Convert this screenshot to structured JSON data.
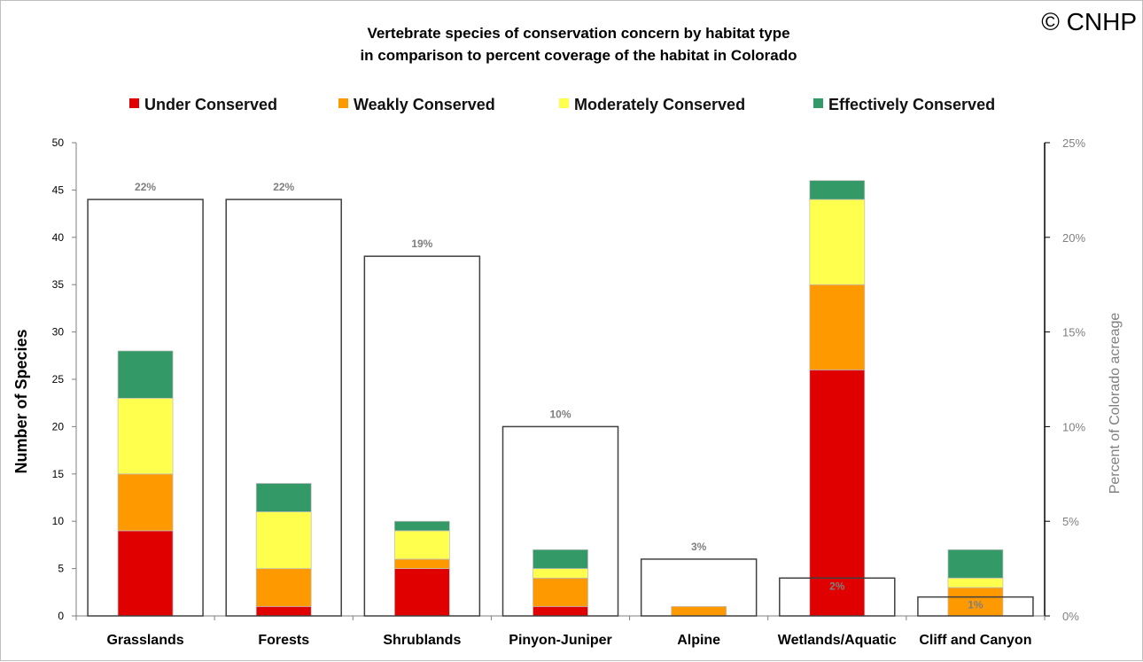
{
  "chart_data": {
    "type": "bar",
    "title": [
      "Vertebrate species of conservation  concern by habitat type",
      "in comparison  to percent coverage of the habitat in Colorado"
    ],
    "copyright": "© CNHP",
    "categories": [
      "Grasslands",
      "Forests",
      "Shrublands",
      "Pinyon-Juniper",
      "Alpine",
      "Wetlands/Aquatic",
      "Cliff and Canyon"
    ],
    "series": [
      {
        "name": "Under Conserved",
        "color": "#e00000",
        "values": [
          9,
          1,
          5,
          1,
          0,
          26,
          0
        ]
      },
      {
        "name": "Weakly Conserved",
        "color": "#ff9900",
        "values": [
          6,
          4,
          1,
          3,
          1,
          9,
          3
        ]
      },
      {
        "name": "Moderately Conserved",
        "color": "#ffff4d",
        "values": [
          8,
          6,
          3,
          1,
          0,
          9,
          1
        ]
      },
      {
        "name": "Effectively Conserved",
        "color": "#339966",
        "values": [
          5,
          3,
          1,
          2,
          0,
          2,
          3
        ]
      }
    ],
    "secondary_series": {
      "name": "Percent of Colorado acreage",
      "type": "bar-outline",
      "values": [
        22,
        22,
        19,
        10,
        3,
        2,
        1
      ],
      "labels": [
        "22%",
        "22%",
        "19%",
        "10%",
        "3%",
        "2%",
        "1%"
      ]
    },
    "ylabel": "Number of Species",
    "ylim": [
      0,
      50
    ],
    "yticks": [
      "0",
      "5",
      "10",
      "15",
      "20",
      "25",
      "30",
      "35",
      "40",
      "45",
      "50"
    ],
    "y2label": "Percent of Colorado acreage",
    "y2lim": [
      0,
      25
    ],
    "y2ticks": [
      "0%",
      "5%",
      "10%",
      "15%",
      "20%",
      "25%"
    ],
    "legend_position": "top"
  }
}
